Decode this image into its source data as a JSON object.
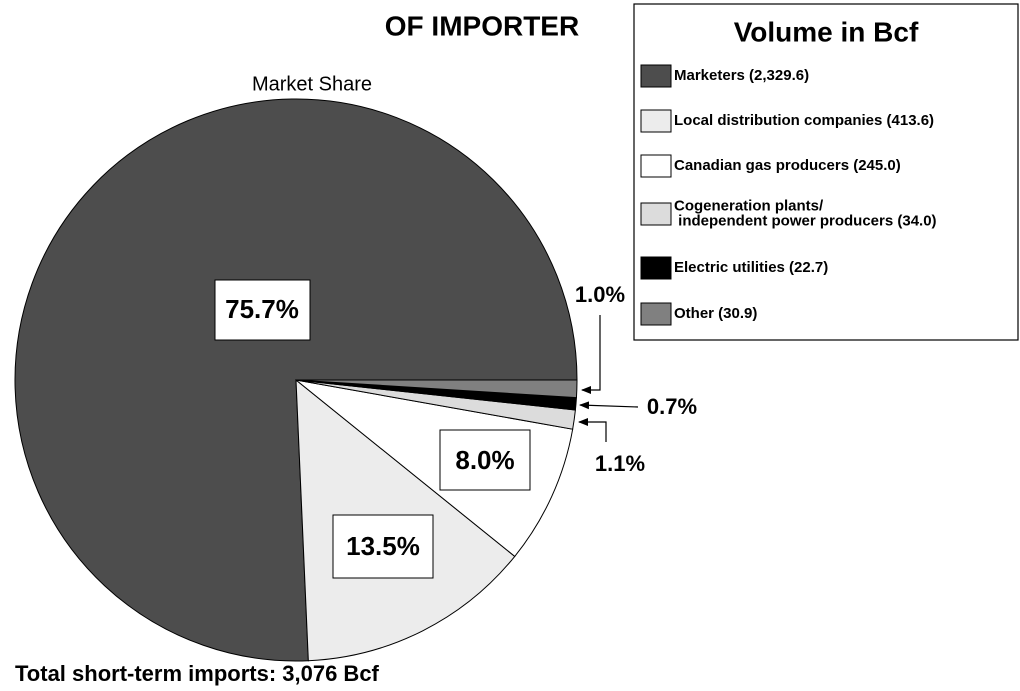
{
  "chart_data": {
    "type": "pie",
    "title": "OF IMPORTER",
    "subtitle": "Market Share",
    "legend_title": "Volume in Bcf",
    "footer": "Total short-term imports: 3,076 Bcf",
    "categories": [
      "Marketers (2,329.6)",
      "Local distribution companies (413.6)",
      "Canadian gas producers (245.0)",
      "Cogeneration plants/\n independent power producers (34.0)",
      "Electric utilities (22.7)",
      "Other (30.9)"
    ],
    "values": [
      75.7,
      13.5,
      8.0,
      1.1,
      0.7,
      1.0
    ],
    "value_labels": [
      "75.7%",
      "13.5%",
      "8.0%",
      "1.1%",
      "0.7%",
      "1.0%"
    ],
    "colors": [
      "#4d4d4d",
      "#ececec",
      "#ffffff",
      "#dcdcdc",
      "#000000",
      "#808080"
    ],
    "legend": "upper right"
  }
}
